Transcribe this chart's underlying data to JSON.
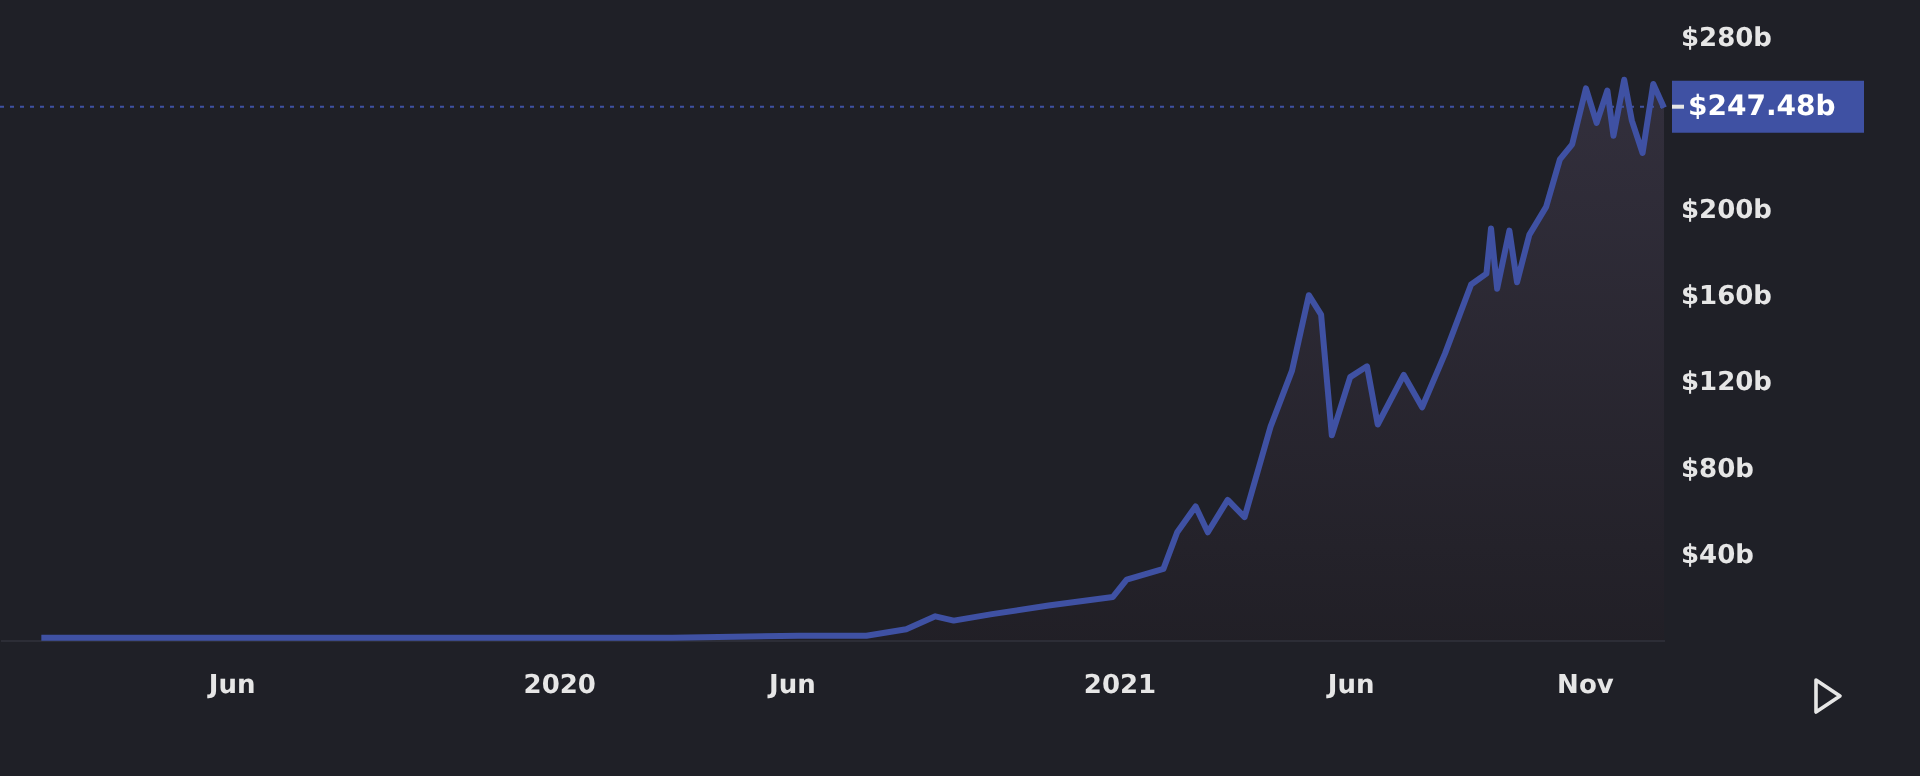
{
  "chart_data": {
    "type": "area",
    "x": [
      "2019-01-28",
      "2019-06-01",
      "2019-10-01",
      "2020-01-01",
      "2020-03-15",
      "2020-06-06",
      "2020-07-20",
      "2020-08-15",
      "2020-09-03",
      "2020-09-15",
      "2020-10-10",
      "2020-11-16",
      "2020-12-28",
      "2021-01-06",
      "2021-01-30",
      "2021-02-08",
      "2021-02-20",
      "2021-02-28",
      "2021-03-13",
      "2021-03-24",
      "2021-04-10",
      "2021-04-17",
      "2021-04-24",
      "2021-05-05",
      "2021-05-13",
      "2021-05-20",
      "2021-06-01",
      "2021-06-12",
      "2021-06-19",
      "2021-07-06",
      "2021-07-18",
      "2021-08-02",
      "2021-08-19",
      "2021-08-29",
      "2021-09-01",
      "2021-09-05",
      "2021-09-13",
      "2021-09-18",
      "2021-09-26",
      "2021-10-07",
      "2021-10-16",
      "2021-10-24",
      "2021-11-02",
      "2021-11-09",
      "2021-11-16",
      "2021-11-20",
      "2021-11-27",
      "2021-12-02",
      "2021-12-09",
      "2021-12-16",
      "2021-12-23"
    ],
    "values": [
      1,
      1,
      1,
      1,
      1,
      2,
      2,
      5,
      11,
      9,
      12,
      16,
      20,
      28,
      33,
      50,
      62,
      50,
      65,
      57,
      99,
      112,
      125,
      160,
      151,
      95,
      122,
      127,
      100,
      123,
      108,
      133,
      165,
      170,
      191,
      163,
      190,
      166,
      188,
      201,
      223,
      230,
      256,
      240,
      255,
      234,
      260,
      241,
      226,
      258,
      247
    ],
    "color": "#3f51a3",
    "xlim": [
      "2019-01-01",
      "2021-12-23"
    ],
    "xticks": [
      {
        "value": "2019-06-01",
        "label": "Jun"
      },
      {
        "value": "2020-01-01",
        "label": "2020"
      },
      {
        "value": "2020-06-01",
        "label": "Jun"
      },
      {
        "value": "2021-01-01",
        "label": "2021"
      },
      {
        "value": "2021-06-01",
        "label": "Jun"
      },
      {
        "value": "2021-11-01",
        "label": "Nov"
      }
    ],
    "ylim": [
      0,
      297
    ],
    "yticks": [
      {
        "value": 40,
        "label": "$40b"
      },
      {
        "value": 80,
        "label": "$80b"
      },
      {
        "value": 120,
        "label": "$120b"
      },
      {
        "value": 160,
        "label": "$160b"
      },
      {
        "value": 200,
        "label": "$200b"
      },
      {
        "value": 280,
        "label": "$280b"
      }
    ],
    "ref_lines": [
      {
        "axis": "y",
        "value": 247.48,
        "label": "$247.48b",
        "color": "#3f51a3",
        "line_style": "dotted"
      }
    ]
  }
}
